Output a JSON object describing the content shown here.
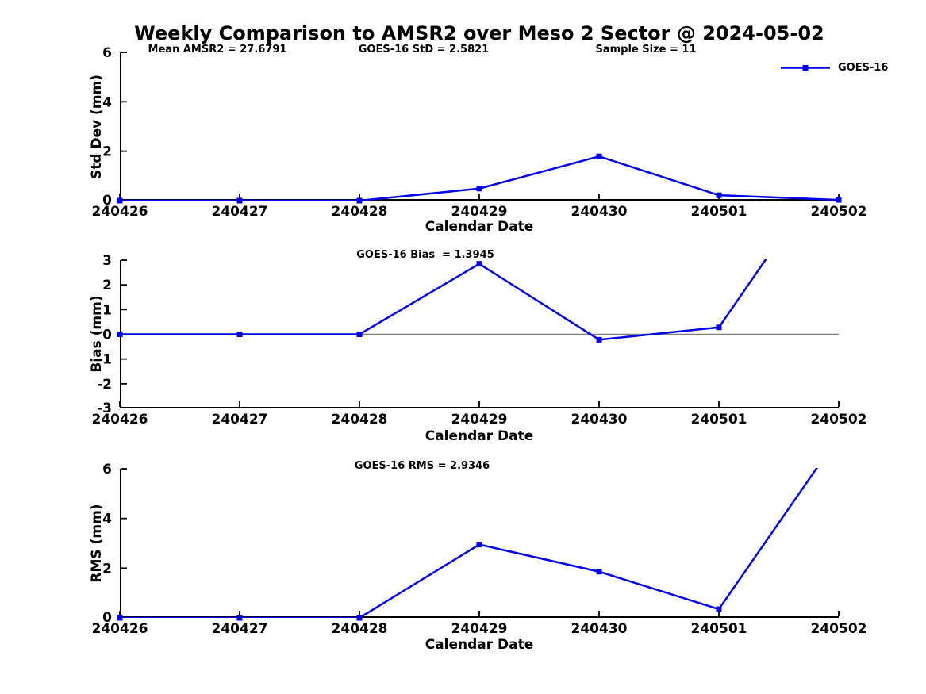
{
  "figure": {
    "title": "Weekly Comparison to AMSR2 over Meso 2 Sector @ 2024-05-02",
    "colors": {
      "line": "#0000EE",
      "axis": "#000000",
      "zero_line": "#808080",
      "text": "#000000",
      "background": "#FFFFFF"
    }
  },
  "legend": {
    "label": "GOES-16"
  },
  "chart_data": [
    {
      "type": "line",
      "ylabel": "Std Dev (mm)",
      "xlabel": "Calendar Date",
      "ylim": [
        0,
        6
      ],
      "yticks": [
        0,
        2,
        4,
        6
      ],
      "x": [
        "240426",
        "240427",
        "240428",
        "240429",
        "240430",
        "240501",
        "240502"
      ],
      "series": [
        {
          "name": "GOES-16",
          "values": [
            0,
            0,
            0,
            0.49,
            1.79,
            0.22,
            0.03
          ]
        }
      ],
      "zero_line": false,
      "grid": false,
      "legend_position": "top-right",
      "annotations": [
        {
          "text": "Mean AMSR2 = 27.6791"
        },
        {
          "text": "GOES-16 StD = 2.5821"
        },
        {
          "text": "Sample Size = 11"
        }
      ]
    },
    {
      "type": "line",
      "ylabel": "Bias (mm)",
      "xlabel": "Calendar Date",
      "ylim": [
        -3,
        3
      ],
      "yticks": [
        -3,
        -2,
        -1,
        0,
        1,
        2,
        3
      ],
      "x": [
        "240426",
        "240427",
        "240428",
        "240429",
        "240430",
        "240501",
        "240502"
      ],
      "series": [
        {
          "name": "GOES-16",
          "values": [
            0,
            0,
            0,
            2.85,
            -0.22,
            0.28,
            7.3
          ]
        }
      ],
      "zero_line": true,
      "grid": false,
      "annotations": [
        {
          "text": "GOES-16 Bias  = 1.3945"
        }
      ]
    },
    {
      "type": "line",
      "ylabel": "RMS (mm)",
      "xlabel": "Calendar Date",
      "ylim": [
        0,
        6
      ],
      "yticks": [
        0,
        2,
        4,
        6
      ],
      "x": [
        "240426",
        "240427",
        "240428",
        "240429",
        "240430",
        "240501",
        "240502"
      ],
      "series": [
        {
          "name": "GOES-16",
          "values": [
            0,
            0,
            0,
            2.95,
            1.86,
            0.35,
            7.3
          ]
        }
      ],
      "zero_line": false,
      "grid": false,
      "annotations": [
        {
          "text": "GOES-16 RMS = 2.9346"
        }
      ]
    }
  ]
}
